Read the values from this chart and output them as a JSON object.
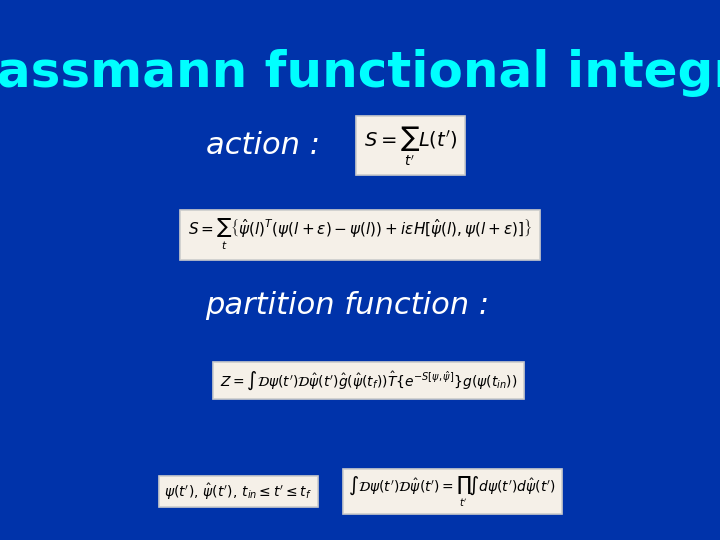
{
  "background_color": "#0033aa",
  "title": "Grassmann functional integral",
  "title_color": "#00ffff",
  "title_fontsize": 36,
  "title_bold": true,
  "action_label": "action :",
  "action_label_color": "#ffffff",
  "action_label_fontsize": 22,
  "partition_label": "partition function :",
  "partition_label_color": "#ffffff",
  "partition_label_fontsize": 22,
  "box_facecolor": "#f5f0e8",
  "box_edgecolor": "#cccccc",
  "formula_action_small": "$S = \\sum_{t'} L(t')$",
  "formula_action_full": "$S = \\sum_{t} \\left\\{ \\hat{\\psi}(l)^T (\\psi(l+\\epsilon) - \\psi(l)) + i\\epsilon H[\\hat{\\psi}(l), \\psi(l+\\epsilon)] \\right\\}$",
  "formula_partition": "$Z = \\int \\mathcal{D}\\psi(t') \\mathcal{D}\\hat{\\psi}(t') \\hat{g}(\\hat{\\psi}(t_f)) \\hat{T} \\{ e^{-S[\\psi, \\hat{\\psi}]} \\} g(\\psi(t_{in}))$",
  "formula_bottom_left": "$\\psi(t'),\\, \\hat{\\psi}(t'),\\, t_{in} \\leq t' \\leq t_f$",
  "formula_bottom_right": "$\\int \\mathcal{D}\\psi(t') \\mathcal{D}\\hat{\\psi}(t') = \\prod_{t'} \\int d\\psi(t') d\\hat{\\psi}(t')$"
}
